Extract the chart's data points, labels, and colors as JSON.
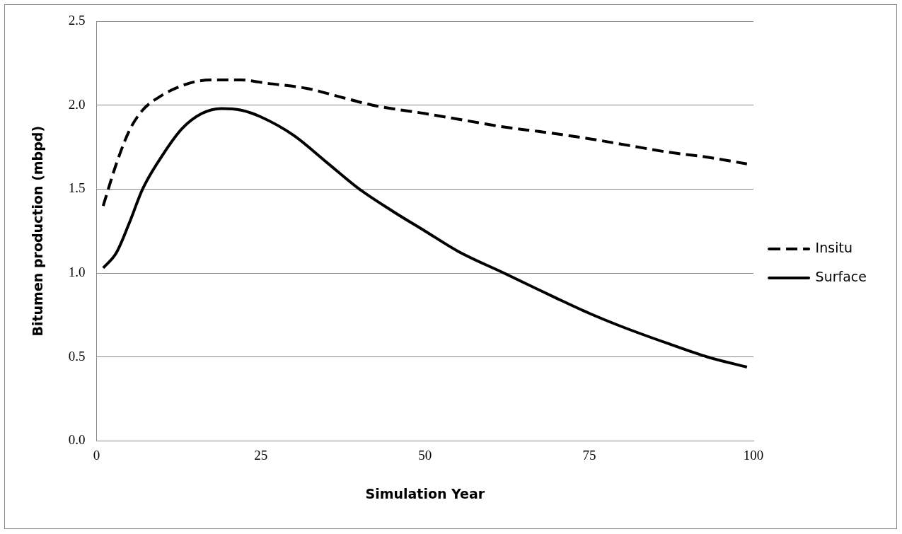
{
  "chart_data": {
    "type": "line",
    "xlabel": "Simulation Year",
    "ylabel": "Bitumen production (mbpd)",
    "xlim": [
      0,
      100
    ],
    "xticks": [
      0,
      25,
      50,
      75,
      100
    ],
    "ylim": [
      0,
      2.5
    ],
    "yticks": [
      {
        "value": 0,
        "label": "0.0"
      },
      {
        "value": 0.5,
        "label": "0.5"
      },
      {
        "value": 1,
        "label": "1.0"
      },
      {
        "value": 1.5,
        "label": "1.5"
      },
      {
        "value": 2,
        "label": "2.0"
      },
      {
        "value": 2.5,
        "label": "2.5"
      }
    ],
    "grid": "y",
    "legend": "right",
    "marker": "none",
    "series": [
      {
        "name": "Insitu",
        "color": "#000000",
        "line_style": "dashed",
        "x": [
          1,
          3,
          5,
          7,
          10,
          12,
          15,
          18,
          22,
          26,
          32,
          37,
          42,
          50,
          56,
          62,
          68,
          75,
          81,
          87,
          93,
          99
        ],
        "values": [
          1.4,
          1.65,
          1.85,
          1.97,
          2.06,
          2.1,
          2.14,
          2.15,
          2.15,
          2.13,
          2.1,
          2.05,
          2.0,
          1.95,
          1.91,
          1.87,
          1.84,
          1.8,
          1.76,
          1.72,
          1.69,
          1.65
        ]
      },
      {
        "name": "Surface",
        "color": "#000000",
        "line_style": "solid",
        "x": [
          1,
          3,
          5,
          7,
          10,
          13,
          16,
          19,
          22,
          25,
          30,
          35,
          40,
          45,
          50,
          55,
          62,
          70,
          75,
          80,
          87,
          93,
          99
        ],
        "values": [
          1.03,
          1.12,
          1.3,
          1.5,
          1.7,
          1.86,
          1.95,
          1.98,
          1.97,
          1.93,
          1.82,
          1.66,
          1.5,
          1.37,
          1.25,
          1.13,
          1.0,
          0.85,
          0.76,
          0.68,
          0.58,
          0.5,
          0.44
        ]
      }
    ]
  }
}
